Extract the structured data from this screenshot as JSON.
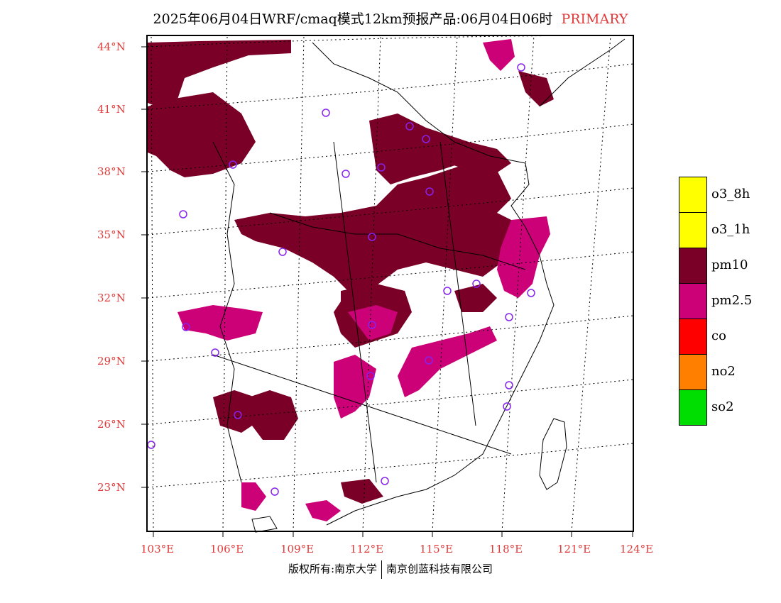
{
  "title": {
    "main": "2025年06月04日WRF/cmaq模式12km预报产品:06月04日06时",
    "badge": "PRIMARY"
  },
  "map": {
    "lat_labels": [
      "44°N",
      "41°N",
      "38°N",
      "35°N",
      "32°N",
      "29°N",
      "26°N",
      "23°N"
    ],
    "lon_labels": [
      "103°E",
      "106°E",
      "109°E",
      "112°E",
      "115°E",
      "118°E",
      "121°E",
      "124°E"
    ],
    "pollutant_colors": {
      "pm10": "#7a0027",
      "pm2.5": "#cc0077"
    },
    "station_marker_color": "#8822ee"
  },
  "legend": {
    "items": [
      {
        "label": "o3_8h",
        "color": "#ffff00"
      },
      {
        "label": "o3_1h",
        "color": "#ffff00"
      },
      {
        "label": "pm10",
        "color": "#7a0027"
      },
      {
        "label": "pm2.5",
        "color": "#cc0077"
      },
      {
        "label": "co",
        "color": "#ff0000"
      },
      {
        "label": "no2",
        "color": "#ff7f00"
      },
      {
        "label": "so2",
        "color": "#00dd00"
      }
    ]
  },
  "footer": {
    "copyright_left": "版权所有:南京大学",
    "copyright_right": "南京创蓝科技有限公司"
  }
}
